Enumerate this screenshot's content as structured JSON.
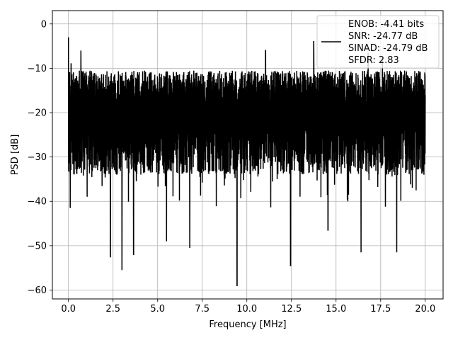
{
  "chart_data": {
    "type": "line",
    "title": "",
    "xlabel": "Frequency [MHz]",
    "ylabel": "PSD [dB]",
    "xlim": [
      -0.9,
      21.0
    ],
    "ylim": [
      -62.0,
      3.0
    ],
    "x_ticks": [
      0.0,
      2.5,
      5.0,
      7.5,
      10.0,
      12.5,
      15.0,
      17.5,
      20.0
    ],
    "x_tick_labels": [
      "0.0",
      "2.5",
      "5.0",
      "7.5",
      "10.0",
      "12.5",
      "15.0",
      "17.5",
      "20.0"
    ],
    "y_ticks": [
      0,
      -10,
      -20,
      -30,
      -40,
      -50,
      -60
    ],
    "y_tick_labels": [
      "0",
      "−10",
      "−20",
      "−30",
      "−40",
      "−50",
      "−60"
    ],
    "grid": true,
    "legend_position": "top-right",
    "line_color": "#000000",
    "series": [
      {
        "name": "ENOB: -4.41 bits\nSNR: -24.77 dB\nSINAD: -24.79 dB\nSFDR: 2.83",
        "x_start": 0.0,
        "x_end": 20.0,
        "envelope_note": "dense noise trace; typical values between about -12 and -35 dB",
        "peaks": [
          {
            "x": 0.0,
            "y": -3.0
          },
          {
            "x": 0.15,
            "y": -9.0
          },
          {
            "x": 0.7,
            "y": -6.0
          },
          {
            "x": 3.2,
            "y": -11.5
          },
          {
            "x": 11.05,
            "y": -6.0
          },
          {
            "x": 13.75,
            "y": -4.0
          },
          {
            "x": 16.8,
            "y": -6.5
          },
          {
            "x": 17.6,
            "y": -7.5
          }
        ],
        "troughs": [
          {
            "x": 0.1,
            "y": -41.5
          },
          {
            "x": 2.35,
            "y": -52.5
          },
          {
            "x": 3.0,
            "y": -55.5
          },
          {
            "x": 3.65,
            "y": -52.0
          },
          {
            "x": 5.5,
            "y": -49.0
          },
          {
            "x": 6.8,
            "y": -50.5
          },
          {
            "x": 9.45,
            "y": -59.0
          },
          {
            "x": 12.45,
            "y": -54.5
          },
          {
            "x": 14.55,
            "y": -46.5
          },
          {
            "x": 16.4,
            "y": -51.5
          },
          {
            "x": 18.4,
            "y": -51.5
          }
        ]
      }
    ]
  }
}
